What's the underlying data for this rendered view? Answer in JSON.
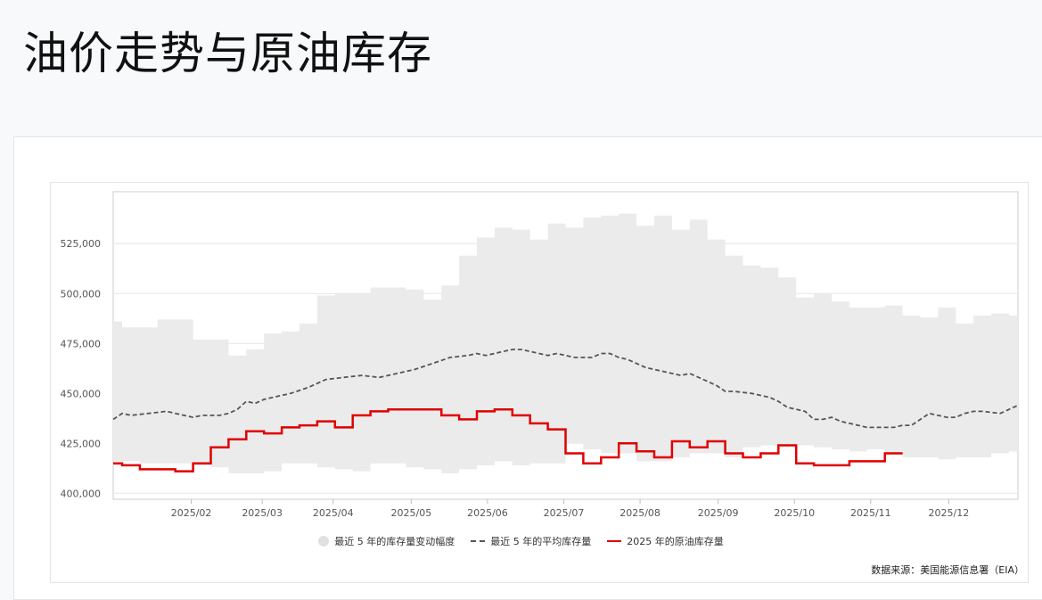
{
  "page": {
    "title": "油价走势与原油库存",
    "source_note": "数据来源：美国能源信息署（EIA）"
  },
  "colors": {
    "band": "#ebebeb",
    "avg_line": "#555555",
    "current_line": "#e00000",
    "grid": "#e6e6e6",
    "axis": "#cccccc"
  },
  "chart_data": {
    "type": "line",
    "title": "",
    "xlabel": "",
    "ylabel": "",
    "x_ticks": [
      "2025/02",
      "2025/03",
      "2025/04",
      "2025/05",
      "2025/06",
      "2025/07",
      "2025/08",
      "2025/09",
      "2025/10",
      "2025/11",
      "2025/12"
    ],
    "y_ticks": [
      "400,000",
      "425,000",
      "450,000",
      "475,000",
      "500,000",
      "525,000"
    ],
    "y_tick_values": [
      400000,
      425000,
      450000,
      475000,
      500000,
      525000
    ],
    "ylim": [
      397000,
      551000
    ],
    "x_range": [
      1,
      52
    ],
    "grid": true,
    "legend_position": "bottom",
    "series": [
      {
        "name": "最近 5 年的库存量变动幅度",
        "kind": "band",
        "x": [
          1,
          2,
          3,
          4,
          5,
          6,
          7,
          8,
          9,
          10,
          11,
          12,
          13,
          14,
          15,
          16,
          17,
          18,
          19,
          20,
          21,
          22,
          23,
          24,
          25,
          26,
          27,
          28,
          29,
          30,
          31,
          32,
          33,
          34,
          35,
          36,
          37,
          38,
          39,
          40,
          41,
          42,
          43,
          44,
          45,
          46,
          47,
          48,
          49,
          50,
          51,
          52
        ],
        "low": [
          416000,
          416000,
          415000,
          415000,
          415000,
          414000,
          413000,
          410000,
          410000,
          411000,
          415000,
          415000,
          413000,
          412000,
          411000,
          415000,
          415000,
          413000,
          412000,
          410000,
          412000,
          414000,
          416000,
          414000,
          415000,
          415000,
          425000,
          422000,
          420000,
          420000,
          416000,
          416000,
          418000,
          420000,
          420000,
          418000,
          423000,
          424000,
          424000,
          424000,
          423000,
          422000,
          421000,
          422000,
          420000,
          418000,
          418000,
          417000,
          418000,
          418000,
          420000,
          421000
        ],
        "high": [
          486000,
          483000,
          483000,
          487000,
          487000,
          477000,
          477000,
          469000,
          472000,
          480000,
          481000,
          485000,
          499000,
          500000,
          500000,
          503000,
          503000,
          502000,
          497000,
          504000,
          519000,
          528000,
          533000,
          532000,
          527000,
          535000,
          533000,
          538000,
          539000,
          540000,
          534000,
          539000,
          532000,
          537000,
          527000,
          519000,
          514000,
          513000,
          508000,
          498000,
          500000,
          496000,
          493000,
          493000,
          494000,
          489000,
          488000,
          493000,
          485000,
          489000,
          490000,
          489000
        ]
      },
      {
        "name": "最近 5 年的平均库存量",
        "kind": "dashed",
        "x": [
          1,
          1.5,
          2,
          3,
          4,
          4.5,
          5,
          5.5,
          6,
          7,
          7.5,
          8,
          8.5,
          9,
          9.5,
          10,
          11,
          12,
          13,
          14,
          15,
          16,
          17,
          18,
          19,
          20,
          21,
          21.5,
          22,
          22.5,
          23,
          23.5,
          24,
          24.5,
          25,
          25.5,
          26,
          26.5,
          27,
          28,
          28.5,
          29,
          29.5,
          30,
          31,
          31.5,
          32,
          33,
          33.5,
          34,
          35,
          35.5,
          36,
          37,
          37.5,
          38,
          38.5,
          39,
          40,
          40.5,
          41,
          41.5,
          42,
          43,
          43.5,
          44,
          45,
          45.5,
          46,
          47,
          48,
          48.5,
          49,
          49.5,
          50,
          51,
          52
        ],
        "values": [
          437000,
          440000,
          439000,
          440000,
          441000,
          440000,
          439000,
          438000,
          439000,
          439000,
          440000,
          442000,
          446000,
          445000,
          447000,
          448000,
          450000,
          453000,
          457000,
          458000,
          459000,
          458000,
          460000,
          462000,
          465000,
          468000,
          469000,
          470000,
          469000,
          470000,
          471000,
          472000,
          472000,
          471000,
          470000,
          469000,
          470000,
          469000,
          468000,
          468000,
          470000,
          470000,
          468000,
          467000,
          463000,
          462000,
          461000,
          459000,
          460000,
          458000,
          454000,
          451000,
          451000,
          450000,
          449000,
          448000,
          446000,
          443000,
          441000,
          437000,
          437000,
          438000,
          436000,
          434000,
          433000,
          433000,
          433000,
          434000,
          434000,
          440000,
          438000,
          438000,
          440000,
          441000,
          441000,
          440000,
          444000
        ]
      },
      {
        "name": "2025 年的原油库存量",
        "kind": "step",
        "x": [
          1,
          2,
          3,
          4,
          5,
          6,
          7,
          8,
          9,
          10,
          11,
          12,
          13,
          14,
          15,
          16,
          17,
          18,
          19,
          20,
          21,
          22,
          23,
          24,
          25,
          26,
          27,
          28,
          29,
          30,
          31,
          32,
          33,
          34,
          35,
          36,
          37,
          38,
          39,
          40,
          41,
          42,
          43,
          44,
          45
        ],
        "values": [
          415000,
          414000,
          412000,
          412000,
          411000,
          415000,
          423000,
          427000,
          431000,
          430000,
          433000,
          434000,
          436000,
          433000,
          439000,
          441000,
          442000,
          442000,
          442000,
          439000,
          437000,
          441000,
          442000,
          439000,
          435000,
          432000,
          420000,
          415000,
          418000,
          425000,
          421000,
          418000,
          426000,
          423000,
          426000,
          420000,
          418000,
          420000,
          424000,
          415000,
          414000,
          414000,
          416000,
          416000,
          420000
        ]
      }
    ]
  }
}
